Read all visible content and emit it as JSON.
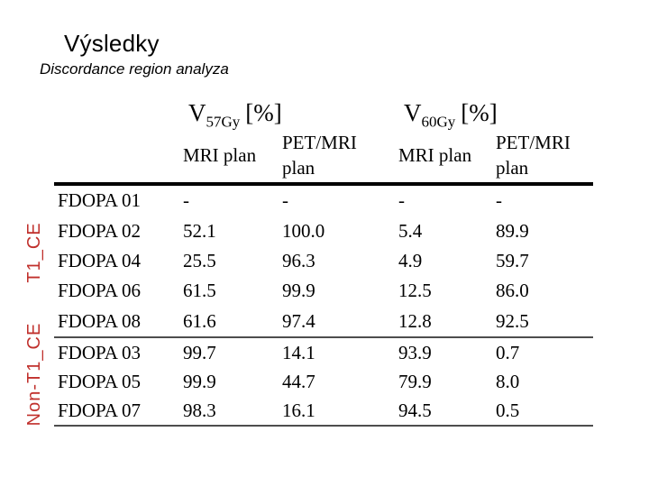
{
  "slide": {
    "title": "Výsledky",
    "subtitle": "Discordance region analyza"
  },
  "table": {
    "dose_headers": [
      {
        "base": "V",
        "sub": "57Gy",
        "unit": "[%]"
      },
      {
        "base": "V",
        "sub": "60Gy",
        "unit": "[%]"
      }
    ],
    "sub_headers": [
      "MRI plan",
      "PET/MRI plan",
      "MRI plan",
      "PET/MRI plan"
    ],
    "row_groups": [
      {
        "group_label": "T1_CE",
        "rows": [
          {
            "label": "FDOPA 01",
            "values": [
              "-",
              "-",
              "-",
              "-"
            ]
          },
          {
            "label": "FDOPA 02",
            "values": [
              "52.1",
              "100.0",
              "5.4",
              "89.9"
            ]
          },
          {
            "label": "FDOPA 04",
            "values": [
              "25.5",
              "96.3",
              "4.9",
              "59.7"
            ]
          },
          {
            "label": "FDOPA 06",
            "values": [
              "61.5",
              "99.9",
              "12.5",
              "86.0"
            ]
          },
          {
            "label": "FDOPA 08",
            "values": [
              "61.6",
              "97.4",
              "12.8",
              "92.5"
            ]
          }
        ]
      },
      {
        "group_label": "Non-T1_CE",
        "rows": [
          {
            "label": "FDOPA 03",
            "values": [
              "99.7",
              "14.1",
              "93.9",
              "0.7"
            ]
          },
          {
            "label": "FDOPA 05",
            "values": [
              "99.9",
              "44.7",
              "79.9",
              "8.0"
            ]
          },
          {
            "label": "FDOPA 07",
            "values": [
              "98.3",
              "16.1",
              "94.5",
              "0.5"
            ]
          }
        ]
      }
    ]
  },
  "colors": {
    "accent_red": "#c0302c",
    "rule_black": "#000000",
    "rule_gray": "#4d4d4d",
    "text": "#000000",
    "background": "#ffffff"
  }
}
